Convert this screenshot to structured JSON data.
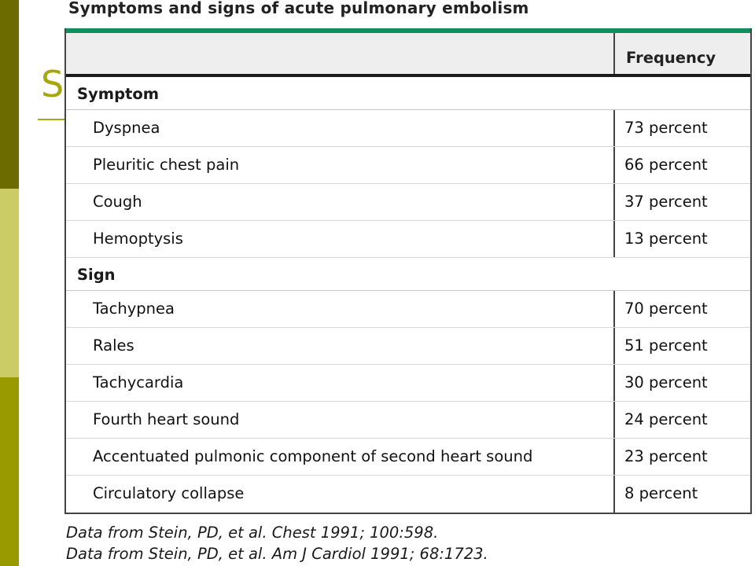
{
  "title": "Symptoms and signs of acute pulmonary embolism",
  "header": {
    "frequency_label": "Frequency"
  },
  "sections": [
    {
      "label": "Symptom",
      "rows": [
        {
          "name": "Dyspnea",
          "freq": "73 percent"
        },
        {
          "name": "Pleuritic chest pain",
          "freq": "66 percent"
        },
        {
          "name": "Cough",
          "freq": "37 percent"
        },
        {
          "name": "Hemoptysis",
          "freq": "13 percent"
        }
      ]
    },
    {
      "label": "Sign",
      "rows": [
        {
          "name": "Tachypnea",
          "freq": "70 percent"
        },
        {
          "name": "Rales",
          "freq": "51 percent"
        },
        {
          "name": "Tachycardia",
          "freq": "30 percent"
        },
        {
          "name": "Fourth heart sound",
          "freq": "24 percent"
        },
        {
          "name": "Accentuated pulmonic component of second heart sound",
          "freq": "23 percent"
        },
        {
          "name": "Circulatory collapse",
          "freq": "8 percent"
        }
      ]
    }
  ],
  "footnotes": [
    "Data from Stein, PD, et al. Chest 1991; 100:598.",
    "Data from Stein, PD, et al. Am J Cardiol 1991; 68:1723."
  ],
  "slide_fragment": "S",
  "colors": {
    "accent": "#0f8f5e",
    "bar_dark": "#6b6b00",
    "bar_light": "#cccc66",
    "bar_mid": "#999900"
  }
}
